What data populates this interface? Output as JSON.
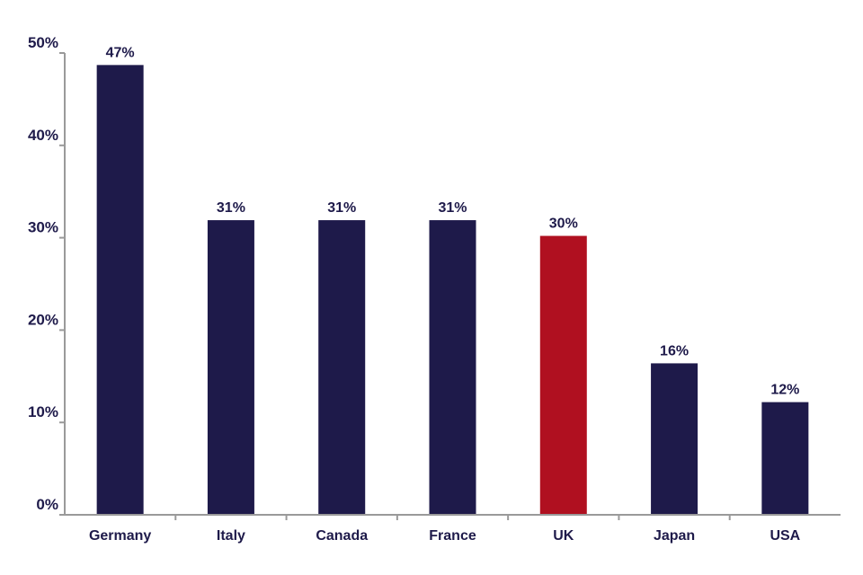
{
  "chart_data": {
    "type": "bar",
    "title": "",
    "xlabel": "",
    "ylabel": "",
    "categories": [
      "Germany",
      "Italy",
      "Canada",
      "France",
      "UK",
      "Japan",
      "USA"
    ],
    "values": [
      47,
      31,
      31,
      31,
      30,
      16,
      12
    ],
    "bar_heights_approx": [
      48.7,
      31.9,
      31.9,
      31.9,
      30.2,
      16.4,
      12.2
    ],
    "data_labels": [
      "47%",
      "31%",
      "31%",
      "31%",
      "30%",
      "16%",
      "12%"
    ],
    "highlight_category": "UK",
    "yticks": [
      "0%",
      "10%",
      "20%",
      "30%",
      "40%",
      "50%"
    ],
    "ylim": [
      0,
      50
    ],
    "grid": false,
    "legend": "none",
    "colors": {
      "bar": "#1e1a4a",
      "highlight": "#b01020",
      "axis": "#9a9a9a",
      "text": "#1e1a4a"
    }
  }
}
